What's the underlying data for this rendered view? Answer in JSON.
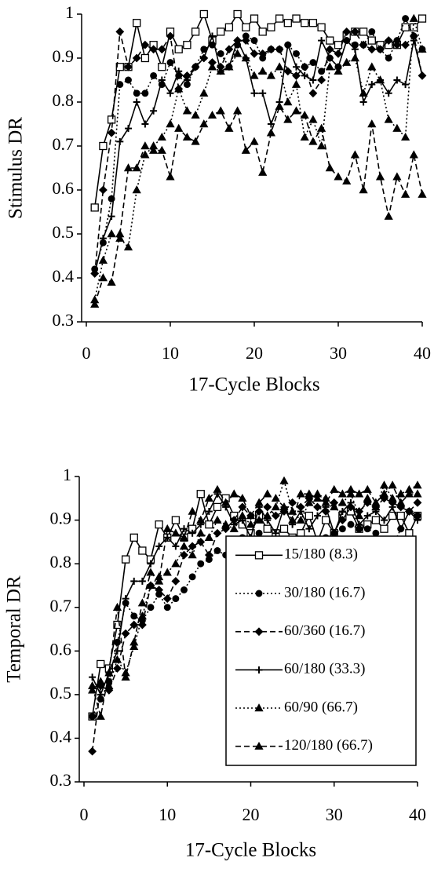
{
  "chart_data": [
    {
      "type": "line",
      "y_label": "Stimulus DR",
      "x_label": "17-Cycle Blocks",
      "x": [
        1,
        2,
        3,
        4,
        5,
        6,
        7,
        8,
        9,
        10,
        11,
        12,
        13,
        14,
        15,
        16,
        17,
        18,
        19,
        20,
        21,
        22,
        23,
        24,
        25,
        26,
        27,
        28,
        29,
        30,
        31,
        32,
        33,
        34,
        35,
        36,
        37,
        38,
        39,
        40
      ],
      "xlim": [
        0,
        40
      ],
      "xticks": [
        0,
        10,
        20,
        30,
        40
      ],
      "ylim": [
        0.3,
        1
      ],
      "yticks": [
        0.3,
        0.4,
        0.5,
        0.6,
        0.7,
        0.8,
        0.9,
        1
      ],
      "series": [
        {
          "color": "#000000",
          "dash": "solid",
          "marker": "square",
          "values": [
            0.56,
            0.7,
            0.76,
            0.88,
            0.88,
            0.98,
            0.9,
            0.93,
            0.88,
            0.96,
            0.92,
            0.93,
            0.96,
            1.0,
            0.94,
            0.96,
            0.97,
            1.0,
            0.97,
            0.99,
            0.96,
            0.97,
            0.99,
            0.98,
            0.99,
            0.98,
            0.98,
            0.97,
            0.94,
            0.93,
            0.95,
            0.96,
            0.96,
            0.94,
            0.93,
            0.93,
            0.93,
            0.97,
            0.97,
            0.99
          ]
        },
        {
          "color": "#000000",
          "dash": "dotted",
          "marker": "circle",
          "values": [
            0.42,
            0.48,
            0.58,
            0.84,
            0.85,
            0.82,
            0.82,
            0.86,
            0.84,
            0.89,
            0.86,
            0.84,
            0.88,
            0.92,
            0.93,
            0.91,
            0.88,
            0.93,
            0.95,
            0.94,
            0.9,
            0.92,
            0.92,
            0.93,
            0.91,
            0.88,
            0.89,
            0.87,
            0.9,
            0.88,
            0.94,
            0.93,
            0.93,
            0.96,
            0.92,
            0.9,
            0.94,
            0.99,
            0.95,
            0.92
          ]
        },
        {
          "color": "#000000",
          "dash": "dashed",
          "marker": "diamond",
          "values": [
            0.41,
            0.6,
            0.73,
            0.96,
            0.88,
            0.9,
            0.93,
            0.92,
            0.92,
            0.95,
            0.83,
            0.86,
            0.88,
            0.9,
            0.89,
            0.88,
            0.92,
            0.94,
            0.94,
            0.91,
            0.91,
            0.92,
            0.92,
            0.87,
            0.86,
            0.88,
            0.82,
            0.85,
            0.92,
            0.91,
            0.96,
            0.96,
            0.93,
            0.92,
            0.92,
            0.94,
            0.93,
            0.93,
            0.95,
            0.86
          ]
        },
        {
          "color": "#000000",
          "dash": "solid",
          "marker": "plus",
          "values": [
            0.41,
            0.49,
            0.54,
            0.71,
            0.74,
            0.8,
            0.75,
            0.78,
            0.85,
            0.82,
            0.87,
            0.85,
            0.88,
            0.9,
            0.95,
            0.87,
            0.88,
            0.94,
            0.9,
            0.82,
            0.82,
            0.75,
            0.8,
            0.93,
            0.88,
            0.86,
            0.85,
            0.94,
            0.9,
            0.88,
            0.94,
            0.92,
            0.8,
            0.84,
            0.85,
            0.82,
            0.85,
            0.84,
            0.94,
            0.86
          ]
        },
        {
          "color": "#000000",
          "dash": "dotted",
          "marker": "triangle",
          "values": [
            0.35,
            0.44,
            0.5,
            0.49,
            0.47,
            0.6,
            0.68,
            0.7,
            0.72,
            0.75,
            0.83,
            0.78,
            0.77,
            0.82,
            0.88,
            0.87,
            0.88,
            0.91,
            0.9,
            0.86,
            0.87,
            0.86,
            0.88,
            0.8,
            0.84,
            0.72,
            0.76,
            0.7,
            0.88,
            0.87,
            0.89,
            0.9,
            0.82,
            0.88,
            0.85,
            0.76,
            0.74,
            0.72,
            0.99,
            0.92
          ]
        },
        {
          "color": "#000000",
          "dash": "dashed",
          "marker": "triangle",
          "values": [
            0.34,
            0.4,
            0.39,
            0.5,
            0.65,
            0.65,
            0.7,
            0.69,
            0.69,
            0.63,
            0.74,
            0.72,
            0.71,
            0.75,
            0.77,
            0.78,
            0.74,
            0.78,
            0.69,
            0.71,
            0.64,
            0.73,
            0.79,
            0.76,
            0.78,
            0.77,
            0.71,
            0.74,
            0.65,
            0.63,
            0.62,
            0.68,
            0.6,
            0.75,
            0.63,
            0.54,
            0.63,
            0.59,
            0.68,
            0.59
          ]
        }
      ]
    },
    {
      "type": "line",
      "y_label": "Temporal DR",
      "x_label": "17-Cycle Blocks",
      "legend": "lower right",
      "x": [
        1,
        2,
        3,
        4,
        5,
        6,
        7,
        8,
        9,
        10,
        11,
        12,
        13,
        14,
        15,
        16,
        17,
        18,
        19,
        20,
        21,
        22,
        23,
        24,
        25,
        26,
        27,
        28,
        29,
        30,
        31,
        32,
        33,
        34,
        35,
        36,
        37,
        38,
        39,
        40
      ],
      "xlim": [
        0,
        40
      ],
      "xticks": [
        0,
        10,
        20,
        30,
        40
      ],
      "ylim": [
        0.3,
        1
      ],
      "yticks": [
        0.3,
        0.4,
        0.5,
        0.6,
        0.7,
        0.8,
        0.9,
        1
      ],
      "series": [
        {
          "name": "15/180 (8.3)",
          "color": "#000000",
          "dash": "solid",
          "marker": "square",
          "values": [
            0.45,
            0.57,
            0.56,
            0.66,
            0.81,
            0.86,
            0.83,
            0.81,
            0.89,
            0.86,
            0.9,
            0.86,
            0.88,
            0.96,
            0.89,
            0.93,
            0.95,
            0.91,
            0.89,
            0.87,
            0.91,
            0.88,
            0.87,
            0.88,
            0.86,
            0.87,
            0.91,
            0.85,
            0.9,
            0.87,
            0.91,
            0.92,
            0.88,
            0.89,
            0.9,
            0.88,
            0.91,
            0.91,
            0.87,
            0.91
          ]
        },
        {
          "name": "30/180 (16.7)",
          "color": "#000000",
          "dash": "dotted",
          "marker": "circle",
          "values": [
            0.45,
            0.49,
            0.53,
            0.62,
            0.71,
            0.68,
            0.67,
            0.7,
            0.73,
            0.7,
            0.72,
            0.74,
            0.77,
            0.8,
            0.81,
            0.83,
            0.82,
            0.85,
            0.86,
            0.84,
            0.87,
            0.81,
            0.79,
            0.8,
            0.77,
            0.81,
            0.83,
            0.84,
            0.86,
            0.87,
            0.88,
            0.89,
            0.88,
            0.88,
            0.87,
            0.85,
            0.84,
            0.88,
            0.92,
            0.91
          ]
        },
        {
          "name": "60/360 (16.7)",
          "color": "#000000",
          "dash": "dashed",
          "marker": "diamond",
          "values": [
            0.37,
            0.52,
            0.51,
            0.56,
            0.64,
            0.66,
            0.66,
            0.75,
            0.74,
            0.72,
            0.76,
            0.82,
            0.84,
            0.85,
            0.82,
            0.87,
            0.88,
            0.9,
            0.93,
            0.91,
            0.92,
            0.93,
            0.91,
            0.92,
            0.94,
            0.93,
            0.95,
            0.93,
            0.92,
            0.94,
            0.9,
            0.93,
            0.92,
            0.94,
            0.93,
            0.95,
            0.94,
            0.93,
            0.92,
            0.94
          ]
        },
        {
          "name": "60/180 (33.3)",
          "color": "#000000",
          "dash": "solid",
          "marker": "plus",
          "values": [
            0.54,
            0.5,
            0.55,
            0.6,
            0.72,
            0.76,
            0.76,
            0.8,
            0.84,
            0.86,
            0.84,
            0.88,
            0.87,
            0.89,
            0.92,
            0.96,
            0.93,
            0.89,
            0.9,
            0.86,
            0.93,
            0.9,
            0.87,
            0.93,
            0.89,
            0.92,
            0.88,
            0.91,
            0.93,
            0.87,
            0.92,
            0.94,
            0.89,
            0.91,
            0.92,
            0.9,
            0.93,
            0.88,
            0.92,
            0.9
          ]
        },
        {
          "name": "60/90 (66.7)",
          "color": "#000000",
          "dash": "dotted",
          "marker": "triangle",
          "values": [
            0.51,
            0.53,
            0.52,
            0.58,
            0.55,
            0.61,
            0.68,
            0.75,
            0.77,
            0.78,
            0.8,
            0.84,
            0.82,
            0.87,
            0.86,
            0.9,
            0.89,
            0.88,
            0.91,
            0.89,
            0.9,
            0.91,
            0.93,
            0.99,
            0.92,
            0.9,
            0.94,
            0.96,
            0.95,
            0.93,
            0.94,
            0.96,
            0.91,
            0.95,
            0.93,
            0.98,
            0.95,
            0.96,
            0.97,
            0.98
          ]
        },
        {
          "name": "120/180 (66.7)",
          "color": "#000000",
          "dash": "dashed",
          "marker": "triangle",
          "values": [
            0.52,
            0.45,
            0.55,
            0.7,
            0.54,
            0.62,
            0.71,
            0.78,
            0.76,
            0.88,
            0.87,
            0.86,
            0.92,
            0.9,
            0.95,
            0.97,
            0.94,
            0.96,
            0.95,
            0.91,
            0.94,
            0.96,
            0.95,
            0.93,
            0.9,
            0.96,
            0.96,
            0.95,
            0.94,
            0.97,
            0.96,
            0.97,
            0.96,
            0.97,
            0.94,
            0.96,
            0.98,
            0.94,
            0.96,
            0.96
          ]
        }
      ]
    }
  ]
}
